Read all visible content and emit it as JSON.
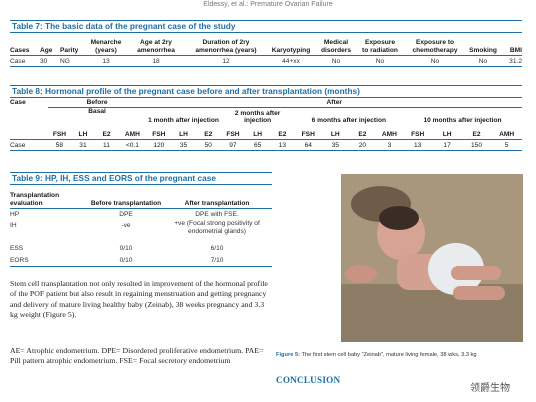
{
  "running_head": "Eldessy, et al.: Premature Ovarian Failure",
  "table7": {
    "title": "Table 7: The basic data of the pregnant case of the study",
    "headers": [
      "Cases",
      "Age",
      "Parity",
      "Menarche (years)",
      "Age at 2ry amenorrhea",
      "Duration of 2ry amenorrhea (years)",
      "Karyotyping",
      "Medical disorders",
      "Exposure to radiation",
      "Exposure to chemotherapy",
      "Smoking",
      "BMI"
    ],
    "row": [
      "Case",
      "30",
      "NG",
      "13",
      "18",
      "12",
      "44+xx",
      "No",
      "No",
      "No",
      "No",
      "31.2"
    ]
  },
  "table8": {
    "title": "Table 8: Hormonal profile of the pregnant case before and after transplantation (months)",
    "case_label": "Case",
    "before_label": "Before",
    "after_label": "After",
    "basal_label": "Basal",
    "period1": "1 month after injection",
    "period2": "2 months after injection",
    "period3": "6 months after injection",
    "period4": "10 months after injection",
    "hormones": [
      "FSH",
      "LH",
      "E2",
      "AMH",
      "FSH",
      "LH",
      "E2",
      "FSH",
      "LH",
      "E2",
      "FSH",
      "LH",
      "E2",
      "AMH",
      "FSH",
      "LH",
      "E2",
      "AMH"
    ],
    "row": [
      "Case",
      "58",
      "31",
      "11",
      "<0.1",
      "120",
      "35",
      "50",
      "97",
      "65",
      "13",
      "64",
      "35",
      "20",
      "3",
      "13",
      "17",
      "150",
      "5"
    ]
  },
  "table9": {
    "title": "Table 9: HP, IH, ESS and EORS of the pregnant case",
    "headers": [
      "Transplantation evaluation",
      "Before transplantation",
      "After transplantation"
    ],
    "rows": [
      [
        "HP",
        "DPE",
        "DPE with FSE."
      ],
      [
        "IH",
        "-ve",
        "+ve (Focal strong positivity of endometrial glands)"
      ],
      [
        "ESS",
        "0/10",
        "6/10"
      ],
      [
        "EORS",
        "0/10",
        "7/10"
      ]
    ]
  },
  "body_text": "Stem cell transplantation not only resulted in improvement of the hormonal profile of the POF patient but also result in regaining menstruation and getting pregnancy and delivery of mature living healthy baby (Zeinab), 38 weeks pregnancy and 3.3 kg weight (Figure 5).",
  "abbreviations": "AE= Atrophic endometrium. DPE= Disordered proliferative endometrium. PAE= Pill pattern atrophic endometrium. FSE= Focal secretory endometrium",
  "figure": {
    "label": "Figure 5:",
    "caption": " The first stem cell baby \"Zeinab\", mature living female, 38 wks, 3.3 kg"
  },
  "conclusion_heading": "CONCLUSION",
  "watermark": "领爵生物",
  "colors": {
    "accent": "#1f6fa6"
  }
}
